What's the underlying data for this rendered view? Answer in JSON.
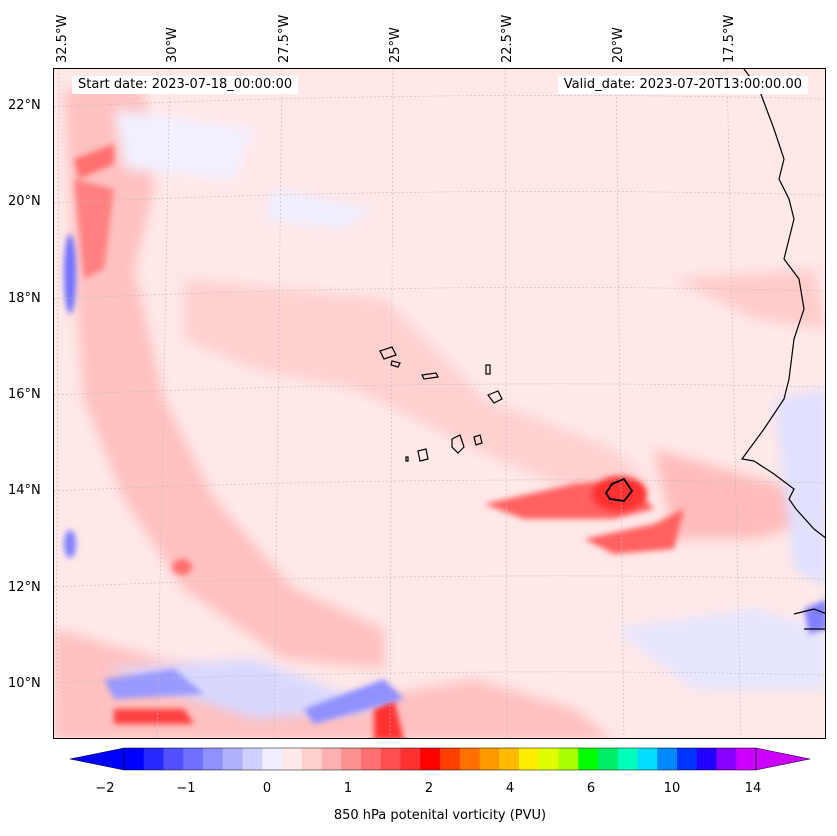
{
  "map": {
    "start_date": "Start date: 2023-07-18_00:00:00",
    "valid_date": "Valid_date: 2023-07-20T13:00:00.00",
    "lon_labels": [
      "32.5°W",
      "30°W",
      "27.5°W",
      "25°W",
      "22.5°W",
      "20°W",
      "17.5°W"
    ],
    "lat_labels": [
      "22°N",
      "20°N",
      "18°N",
      "16°N",
      "14°N",
      "12°N",
      "10°N"
    ],
    "colors": {
      "land_outline": "#000000",
      "background_positive": "#ffe8e8",
      "weak_negative": "#eef0ff"
    }
  },
  "colorbar": {
    "label": "850 hPa potenital vorticity (PVU)",
    "ticks": [
      "−2",
      "−1",
      "0",
      "1",
      "2",
      "4",
      "6",
      "10",
      "14"
    ],
    "colors": [
      "#0000ff",
      "#2828ff",
      "#5050ff",
      "#7070ff",
      "#9090ff",
      "#b0b0ff",
      "#d0d0ff",
      "#eeeeff",
      "#ffe8e8",
      "#ffd0d0",
      "#ffb0b0",
      "#ff9090",
      "#ff7070",
      "#ff5050",
      "#ff3030",
      "#ff0000",
      "#ff4000",
      "#ff7000",
      "#ff9900",
      "#ffbb00",
      "#ffee00",
      "#ddff00",
      "#aaff00",
      "#00ff00",
      "#00ee66",
      "#00ffbb",
      "#00ddff",
      "#0088ff",
      "#0033ff",
      "#2200ff",
      "#8800ff",
      "#cc00ff"
    ]
  }
}
